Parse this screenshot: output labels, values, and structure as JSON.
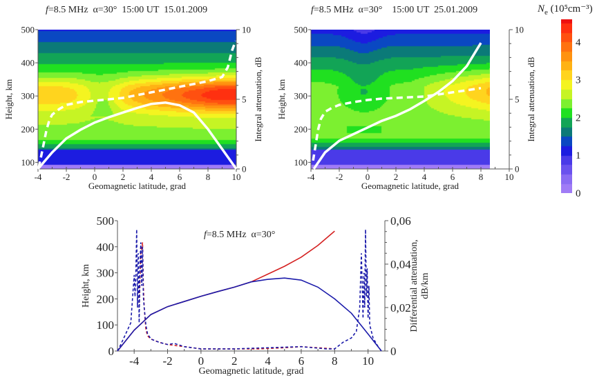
{
  "colors": {
    "ray_top": "#ffffff",
    "ray_o_mode": "#d42020",
    "ray_x_mode": "#1a1aaa"
  },
  "colorbar": {
    "symbol": "N",
    "subscript": "e",
    "unit": "(10⁵cm⁻³)",
    "range": [
      0,
      4.6
    ],
    "ticks": [
      "0",
      "1",
      "2",
      "3",
      "4"
    ],
    "levels": [
      {
        "v": 0,
        "c": "#a07cf6"
      },
      {
        "v": 0.25,
        "c": "#8a6cf3"
      },
      {
        "v": 0.5,
        "c": "#6a52ee"
      },
      {
        "v": 0.75,
        "c": "#4a3ae8"
      },
      {
        "v": 1.0,
        "c": "#1c1ce0"
      },
      {
        "v": 1.25,
        "c": "#0a48c2"
      },
      {
        "v": 1.5,
        "c": "#0b7a78"
      },
      {
        "v": 1.75,
        "c": "#12a456"
      },
      {
        "v": 2.0,
        "c": "#20e020"
      },
      {
        "v": 2.25,
        "c": "#7cf030"
      },
      {
        "v": 2.5,
        "c": "#c6f424"
      },
      {
        "v": 2.75,
        "c": "#f4f420"
      },
      {
        "v": 3.0,
        "c": "#ffd41e"
      },
      {
        "v": 3.25,
        "c": "#ffb214"
      },
      {
        "v": 3.5,
        "c": "#ff9210"
      },
      {
        "v": 3.75,
        "c": "#ff7210"
      },
      {
        "v": 4.0,
        "c": "#ff5010"
      },
      {
        "v": 4.25,
        "c": "#ff3010"
      },
      {
        "v": 4.5,
        "c": "#ee1010"
      }
    ]
  },
  "chart_data": [
    {
      "type": "heatmap",
      "title_italic": "f",
      "title": "=8.5 MHz  α=30°  15:00 UT  15.01.2009",
      "xlabel": "Geomagnetic latitude, grad",
      "ylabel": "Height, km",
      "ylabel_right": "Integral attenuation, dB",
      "xlim": [
        -4,
        10
      ],
      "ylim": [
        80,
        500
      ],
      "ylim_right": [
        0,
        10
      ],
      "xticks": [
        "-4",
        "-2",
        "0",
        "2",
        "4",
        "6",
        "8",
        "10"
      ],
      "yticks": [
        "100",
        "200",
        "300",
        "400",
        "500"
      ],
      "yticks_right": [
        "0",
        "5",
        "10"
      ],
      "series": [
        {
          "style": "solid",
          "axis": "left",
          "x": [
            -4,
            -3,
            -2,
            -1,
            0,
            1,
            2,
            3,
            4,
            5,
            6,
            7,
            8,
            9,
            10
          ],
          "y": [
            80,
            130,
            172,
            198,
            220,
            236,
            250,
            264,
            276,
            280,
            272,
            250,
            200,
            140,
            80
          ]
        },
        {
          "style": "dashed",
          "axis": "right",
          "x": [
            -3.95,
            -3.8,
            -3.6,
            -3.4,
            -3.2,
            -3,
            -2.5,
            -2,
            -1,
            0,
            1,
            2,
            3,
            4,
            5,
            6,
            7,
            8,
            9,
            9.4,
            9.7,
            9.95
          ],
          "y": [
            0.1,
            0.8,
            1.8,
            2.8,
            3.5,
            3.9,
            4.3,
            4.6,
            4.8,
            4.9,
            5.0,
            5.1,
            5.3,
            5.5,
            5.7,
            5.9,
            6.1,
            6.3,
            6.6,
            7.3,
            8.5,
            9.2
          ]
        }
      ]
    },
    {
      "type": "heatmap",
      "title_italic": "f",
      "title": "=8.5 MHz  α=30°    15:00 UT  25.01.2009",
      "xlabel": "Geomagnetic latitude, grad",
      "ylabel": "Height, km",
      "ylabel_right": "Integral attenuation, dB",
      "xlim": [
        -4,
        10
      ],
      "ylim": [
        80,
        500
      ],
      "ylim_right": [
        0,
        10
      ],
      "xticks": [
        "-4",
        "-2",
        "0",
        "2",
        "4",
        "6",
        "8",
        "10"
      ],
      "yticks": [
        "100",
        "200",
        "300",
        "400",
        "500"
      ],
      "yticks_right": [
        "0",
        "5",
        "10"
      ],
      "series": [
        {
          "style": "solid",
          "axis": "left",
          "x": [
            -3.8,
            -3,
            -2,
            -1,
            0,
            1,
            2,
            3,
            4,
            5,
            6,
            7,
            8
          ],
          "y": [
            80,
            130,
            165,
            185,
            205,
            225,
            240,
            260,
            285,
            312,
            345,
            390,
            460
          ]
        },
        {
          "style": "dashed",
          "axis": "right",
          "x": [
            -3.85,
            -3.7,
            -3.5,
            -3.3,
            -3,
            -2.5,
            -2,
            -1,
            0,
            1,
            2,
            3,
            4,
            5,
            6,
            7,
            8
          ],
          "y": [
            0.6,
            1.5,
            2.8,
            3.6,
            4.1,
            4.4,
            4.6,
            4.8,
            4.95,
            5.05,
            5.1,
            5.15,
            5.2,
            5.35,
            5.5,
            5.65,
            5.8
          ]
        }
      ]
    },
    {
      "type": "line",
      "title_italic": "f",
      "title": "=8.5 MHz  α=30°",
      "xlabel": "Geomagnetic latitude, grad",
      "ylabel": "Height, km",
      "ylabel_right": [
        "Differential attenuation,",
        "dB/km"
      ],
      "xlim": [
        -5,
        10.8
      ],
      "ylim": [
        0,
        500
      ],
      "ylim_right": [
        0,
        0.06
      ],
      "xticks": [
        "-4",
        "-2",
        "0",
        "2",
        "4",
        "6",
        "8",
        "10"
      ],
      "yticks": [
        "0",
        "100",
        "200",
        "300",
        "400",
        "500"
      ],
      "yticks_right": [
        "0",
        "0,02",
        "0,04",
        "0,06"
      ],
      "series": [
        {
          "style": "solid",
          "color": "ray_o_mode",
          "axis": "left",
          "x": [
            -5,
            -4,
            -3.5,
            -3,
            -2,
            -1,
            0,
            1,
            2,
            3,
            4,
            5,
            6,
            7,
            8
          ],
          "y": [
            0,
            80,
            110,
            140,
            170,
            190,
            210,
            228,
            245,
            265,
            295,
            325,
            360,
            405,
            460
          ]
        },
        {
          "style": "solid",
          "color": "ray_x_mode",
          "axis": "left",
          "x": [
            -5,
            -4,
            -3.5,
            -3,
            -2,
            -1,
            0,
            1,
            2,
            3,
            4,
            5,
            6,
            7,
            8,
            9,
            10,
            10.8
          ],
          "y": [
            0,
            80,
            110,
            140,
            170,
            190,
            210,
            228,
            245,
            265,
            275,
            280,
            272,
            245,
            200,
            145,
            65,
            0
          ]
        },
        {
          "style": "dashed",
          "color": "ray_o_mode",
          "axis": "right",
          "x": [
            -3.7,
            -3.6,
            -3.5,
            -3.45,
            -3.4,
            -3.3,
            -3.2,
            -3,
            -2.5,
            -2,
            -1,
            0,
            2,
            3.5,
            5,
            6,
            7,
            8
          ],
          "y": [
            0.02,
            0.045,
            0.05,
            0.03,
            0.02,
            0.01,
            0.007,
            0.0055,
            0.004,
            0.003,
            0.002,
            0.001,
            0.001,
            0.001,
            0.0015,
            0.002,
            0.0015,
            0.001
          ]
        },
        {
          "style": "dashed",
          "color": "ray_x_mode",
          "axis": "right",
          "x": [
            -5,
            -4.8,
            -4.5,
            -4.2,
            -4,
            -3.95,
            -3.9,
            -3.85,
            -3.8,
            -3.75,
            -3.7,
            -3.65,
            -3.6,
            -3.55,
            -3.5,
            -3.45,
            -3.4,
            -3.3,
            -3.2,
            -3,
            -2.5,
            -2,
            -1.6,
            -1,
            0,
            1,
            2,
            4,
            6,
            7.5,
            8,
            8.5,
            9,
            9.3,
            9.5,
            9.6,
            9.65,
            9.7,
            9.75,
            9.8,
            9.85,
            9.9,
            9.95,
            10,
            10.05,
            10.1,
            10.3,
            10.6,
            10.8
          ],
          "y": [
            0,
            0.003,
            0.008,
            0.013,
            0.035,
            0.025,
            0.036,
            0.056,
            0.02,
            0.045,
            0.013,
            0.04,
            0.05,
            0.03,
            0.048,
            0.025,
            0.02,
            0.012,
            0.008,
            0.0055,
            0.004,
            0.003,
            0.0035,
            0.002,
            0.001,
            0.001,
            0.001,
            0.0015,
            0.002,
            0.001,
            0.001,
            0.004,
            0.006,
            0.009,
            0.02,
            0.045,
            0.03,
            0.015,
            0.036,
            0.02,
            0.056,
            0.025,
            0.038,
            0.015,
            0.03,
            0.012,
            0.006,
            0.002,
            0
          ]
        }
      ]
    }
  ]
}
